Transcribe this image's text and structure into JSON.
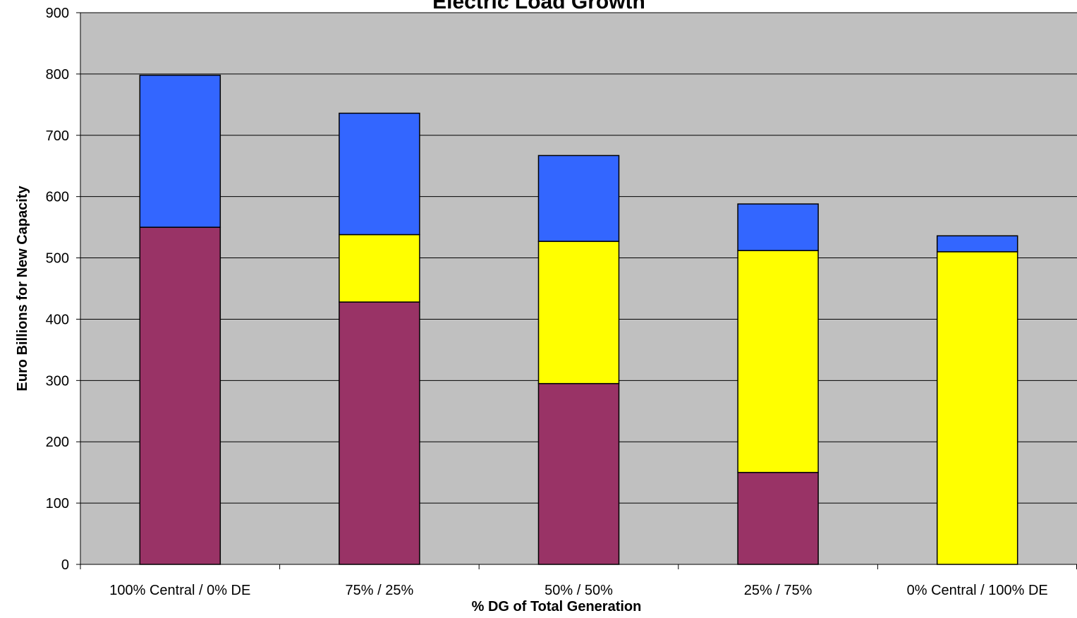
{
  "chart_data": {
    "type": "bar",
    "stacked": true,
    "title": "Electric Load Growth",
    "xlabel": "% DG of Total Generation",
    "ylabel": "Euro Billions for New Capacity",
    "ylim": [
      0,
      900
    ],
    "yticks": [
      0,
      100,
      200,
      300,
      400,
      500,
      600,
      700,
      800,
      900
    ],
    "grid": true,
    "legend": "none",
    "categories": [
      "100% Central / 0% DE",
      "75% / 25%",
      "50% / 50%",
      "25% / 75%",
      "0% Central / 100% DE"
    ],
    "series": [
      {
        "color": "#993366",
        "values": [
          550,
          428,
          295,
          150,
          0
        ]
      },
      {
        "color": "#FFFF00",
        "values": [
          0,
          110,
          232,
          362,
          510
        ]
      },
      {
        "color": "#3366FF",
        "values": [
          248,
          198,
          140,
          76,
          26
        ]
      }
    ],
    "plot_background": "#C0C0C0"
  }
}
